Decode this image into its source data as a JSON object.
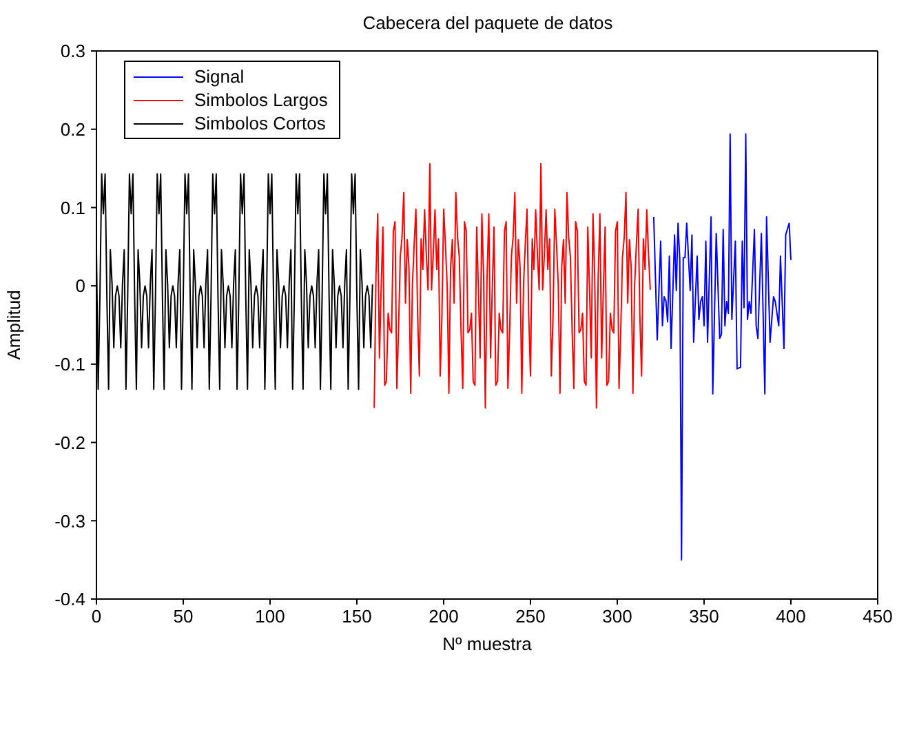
{
  "chart_data": {
    "type": "line",
    "title": "Cabecera del paquete de datos",
    "xlabel": "Nº muestra",
    "ylabel": "Amplitud",
    "xlim": [
      0,
      450
    ],
    "xticks": [
      0,
      50,
      100,
      150,
      200,
      250,
      300,
      350,
      400,
      450
    ],
    "ylim": [
      -0.4,
      0.3
    ],
    "yticks": [
      -0.4,
      -0.3,
      -0.2,
      -0.1,
      0,
      0.1,
      0.2,
      0.3
    ],
    "legend": "top left",
    "line_style": "solid",
    "series": [
      {
        "name": "Signal",
        "color": "#0000ff",
        "x": [
          321,
          323,
          325,
          326,
          327,
          328,
          329,
          330,
          331,
          333,
          334,
          335,
          336,
          337,
          338,
          339,
          340,
          342,
          343,
          344,
          346,
          347,
          348,
          349,
          350,
          351,
          352,
          354,
          355,
          357,
          359,
          360,
          361,
          362,
          363,
          364,
          365,
          366,
          368,
          369,
          371,
          372,
          373,
          374,
          375,
          376,
          377,
          379,
          380,
          381,
          383,
          385,
          386,
          388,
          390,
          391,
          393,
          394,
          396,
          397,
          399,
          400
        ],
        "values": [
          0.088,
          -0.069,
          0.057,
          -0.051,
          -0.014,
          -0.019,
          -0.046,
          0.038,
          -0.08,
          0.065,
          -0.006,
          0.08,
          0.033,
          -0.35,
          0.036,
          0.036,
          0.08,
          -0.006,
          0.065,
          -0.072,
          0.038,
          -0.043,
          -0.02,
          -0.014,
          -0.051,
          0.057,
          -0.072,
          0.088,
          -0.138,
          0.067,
          -0.067,
          -0.062,
          0.072,
          -0.051,
          -0.02,
          -0.035,
          0.194,
          -0.043,
          0.057,
          -0.106,
          -0.104,
          0.057,
          -0.028,
          0.194,
          -0.043,
          -0.02,
          -0.035,
          0.072,
          -0.051,
          -0.067,
          0.067,
          -0.138,
          0.088,
          -0.072,
          -0.014,
          -0.02,
          -0.051,
          0.038,
          -0.08,
          0.065,
          0.08,
          0.033
        ]
      },
      {
        "name": "Simbolos Largos",
        "color": "#ff0000",
        "x": [
          160,
          161,
          162,
          163,
          164,
          165,
          166,
          167,
          168,
          169,
          170,
          171,
          172,
          173,
          174,
          175,
          176,
          177,
          178,
          179,
          180,
          181,
          182,
          183,
          184,
          185,
          186,
          187,
          188,
          189,
          190,
          191,
          192,
          193,
          194,
          195,
          196,
          197,
          198,
          199,
          200,
          201,
          202,
          203,
          204,
          205,
          206,
          207,
          208,
          209,
          210,
          211,
          212,
          213,
          214,
          215,
          216,
          217,
          218,
          219,
          220,
          221,
          222,
          223,
          224,
          225,
          226,
          227,
          228,
          229,
          230,
          231,
          232,
          233,
          234,
          235,
          236,
          237,
          238,
          239,
          240,
          241,
          242,
          243,
          244,
          245,
          246,
          247,
          248,
          249,
          250,
          251,
          252,
          253,
          254,
          255,
          256,
          257,
          258,
          259,
          260,
          261,
          262,
          263,
          264,
          265,
          266,
          267,
          268,
          269,
          270,
          271,
          272,
          273,
          274,
          275,
          276,
          277,
          278,
          279,
          280,
          281,
          282,
          283,
          284,
          285,
          286,
          287,
          288,
          289,
          290,
          291,
          292,
          293,
          294,
          295,
          296,
          297,
          298,
          299,
          300,
          301,
          302,
          303,
          304,
          305,
          306,
          307,
          308,
          309,
          310,
          311,
          312,
          313,
          314,
          315,
          316,
          317,
          318,
          319
        ],
        "values": [
          -0.156,
          0.012,
          0.092,
          -0.092,
          -0.003,
          0.075,
          -0.127,
          -0.122,
          -0.035,
          -0.056,
          -0.06,
          0.07,
          0.082,
          -0.131,
          -0.057,
          0.037,
          0.062,
          0.119,
          -0.022,
          0.059,
          0.024,
          -0.137,
          0.001,
          0.053,
          0.098,
          -0.038,
          -0.115,
          0.06,
          0.021,
          0.097,
          0.04,
          -0.005,
          0.156,
          -0.005,
          0.04,
          0.097,
          0.021,
          0.06,
          -0.115,
          -0.038,
          0.098,
          0.053,
          0.001,
          -0.137,
          0.024,
          0.059,
          -0.022,
          0.119,
          0.062,
          0.037,
          -0.057,
          -0.131,
          0.082,
          0.07,
          -0.06,
          -0.056,
          -0.035,
          -0.122,
          -0.127,
          0.075,
          -0.003,
          -0.092,
          0.092,
          0.012,
          -0.156,
          0.012,
          0.092,
          -0.092,
          -0.003,
          0.075,
          -0.127,
          -0.122,
          -0.035,
          -0.056,
          -0.06,
          0.07,
          0.082,
          -0.131,
          -0.057,
          0.037,
          0.062,
          0.119,
          -0.022,
          0.059,
          0.024,
          -0.137,
          0.001,
          0.053,
          0.098,
          -0.038,
          -0.115,
          0.06,
          0.021,
          0.097,
          0.04,
          -0.005,
          0.156,
          -0.005,
          0.04,
          0.097,
          0.021,
          0.06,
          -0.115,
          -0.038,
          0.098,
          0.053,
          0.001,
          -0.137,
          0.024,
          0.059,
          -0.022,
          0.119,
          0.062,
          0.037,
          -0.057,
          -0.131,
          0.082,
          0.07,
          -0.06,
          -0.056,
          -0.035,
          -0.122,
          -0.127,
          0.075,
          -0.003,
          -0.092,
          0.092,
          0.012,
          -0.156,
          0.012,
          0.092,
          -0.092,
          -0.003,
          0.075,
          -0.127,
          -0.122,
          -0.035,
          -0.056,
          -0.06,
          0.07,
          0.082,
          -0.131,
          -0.057,
          0.037,
          0.062,
          0.119,
          -0.022,
          0.059,
          0.024,
          -0.137,
          0.001,
          0.053,
          0.098,
          -0.038,
          -0.115,
          0.06,
          0.021,
          0.097,
          0.04,
          -0.005
        ]
      },
      {
        "name": "Simbolos Cortos",
        "color": "#000000",
        "x": [
          0,
          1,
          2,
          3,
          4,
          5,
          6,
          7,
          8,
          9,
          10,
          11,
          12,
          13,
          14,
          15,
          16,
          17,
          18,
          19,
          20,
          21,
          22,
          23,
          24,
          25,
          26,
          27,
          28,
          29,
          30,
          31,
          32,
          33,
          34,
          35,
          36,
          37,
          38,
          39,
          40,
          41,
          42,
          43,
          44,
          45,
          46,
          47,
          48,
          49,
          50,
          51,
          52,
          53,
          54,
          55,
          56,
          57,
          58,
          59,
          60,
          61,
          62,
          63,
          64,
          65,
          66,
          67,
          68,
          69,
          70,
          71,
          72,
          73,
          74,
          75,
          76,
          77,
          78,
          79,
          80,
          81,
          82,
          83,
          84,
          85,
          86,
          87,
          88,
          89,
          90,
          91,
          92,
          93,
          94,
          95,
          96,
          97,
          98,
          99,
          100,
          101,
          102,
          103,
          104,
          105,
          106,
          107,
          108,
          109,
          110,
          111,
          112,
          113,
          114,
          115,
          116,
          117,
          118,
          119,
          120,
          121,
          122,
          123,
          124,
          125,
          126,
          127,
          128,
          129,
          130,
          131,
          132,
          133,
          134,
          135,
          136,
          137,
          138,
          139,
          140,
          141,
          142,
          143,
          144,
          145,
          146,
          147,
          148,
          149,
          150,
          151,
          152,
          153,
          154,
          155,
          156,
          157,
          158,
          159
        ],
        "values": [
          0.046,
          -0.132,
          -0.013,
          0.143,
          0.092,
          0.143,
          -0.013,
          -0.132,
          0.046,
          0.002,
          -0.079,
          -0.013,
          0.0,
          -0.013,
          -0.079,
          0.002,
          0.046,
          -0.132,
          -0.013,
          0.143,
          0.092,
          0.143,
          -0.013,
          -0.132,
          0.046,
          0.002,
          -0.079,
          -0.013,
          0.0,
          -0.013,
          -0.079,
          0.002,
          0.046,
          -0.132,
          -0.013,
          0.143,
          0.092,
          0.143,
          -0.013,
          -0.132,
          0.046,
          0.002,
          -0.079,
          -0.013,
          0.0,
          -0.013,
          -0.079,
          0.002,
          0.046,
          -0.132,
          -0.013,
          0.143,
          0.092,
          0.143,
          -0.013,
          -0.132,
          0.046,
          0.002,
          -0.079,
          -0.013,
          0.0,
          -0.013,
          -0.079,
          0.002,
          0.046,
          -0.132,
          -0.013,
          0.143,
          0.092,
          0.143,
          -0.013,
          -0.132,
          0.046,
          0.002,
          -0.079,
          -0.013,
          0.0,
          -0.013,
          -0.079,
          0.002,
          0.046,
          -0.132,
          -0.013,
          0.143,
          0.092,
          0.143,
          -0.013,
          -0.132,
          0.046,
          0.002,
          -0.079,
          -0.013,
          0.0,
          -0.013,
          -0.079,
          0.002,
          0.046,
          -0.132,
          -0.013,
          0.143,
          0.092,
          0.143,
          -0.013,
          -0.132,
          0.046,
          0.002,
          -0.079,
          -0.013,
          0.0,
          -0.013,
          -0.079,
          0.002,
          0.046,
          -0.132,
          -0.013,
          0.143,
          0.092,
          0.143,
          -0.013,
          -0.132,
          0.046,
          0.002,
          -0.079,
          -0.013,
          0.0,
          -0.013,
          -0.079,
          0.002,
          0.046,
          -0.132,
          -0.013,
          0.143,
          0.092,
          0.143,
          -0.013,
          -0.132,
          0.046,
          0.002,
          -0.079,
          -0.013,
          0.0,
          -0.013,
          -0.079,
          0.002,
          0.046,
          -0.132,
          -0.013,
          0.143,
          0.092,
          0.143,
          -0.013,
          -0.132,
          0.046,
          0.002,
          -0.079,
          -0.013,
          0.0,
          -0.013,
          -0.079,
          0.002
        ]
      }
    ]
  }
}
